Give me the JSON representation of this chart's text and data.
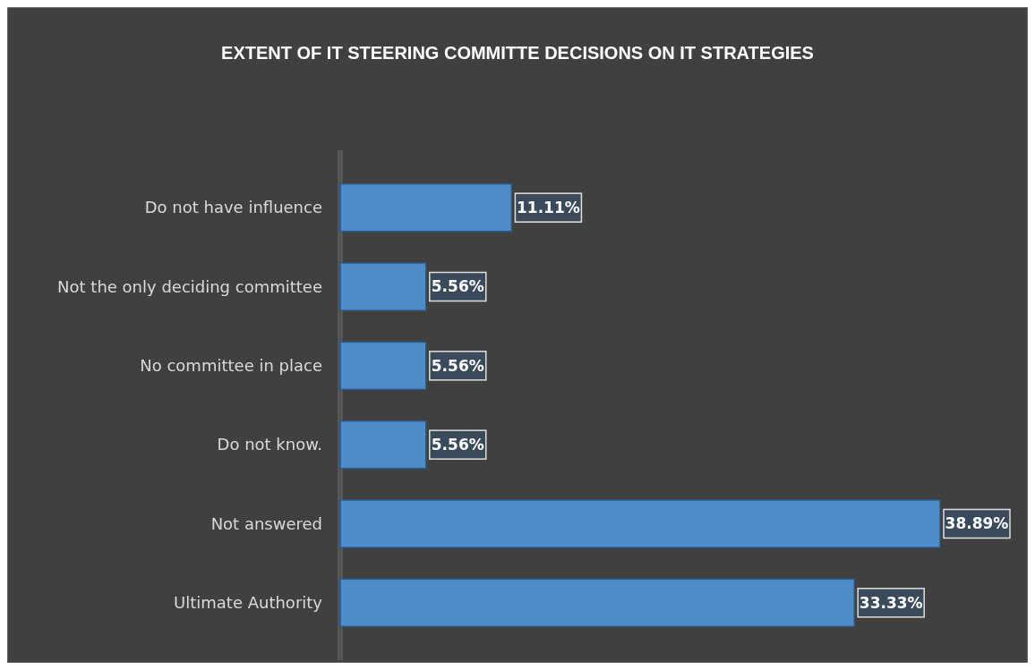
{
  "chart_data": {
    "type": "bar",
    "orientation": "horizontal",
    "title": "EXTENT OF IT STEERING COMMITTE DECISIONS ON IT STRATEGIES",
    "categories": [
      "Do not have influence",
      "Not the only deciding committee",
      "No committee in place",
      "Do not know.",
      "Not answered",
      "Ultimate Authority"
    ],
    "values": [
      11.11,
      5.56,
      5.56,
      5.56,
      38.89,
      33.33
    ],
    "value_labels": [
      "11.11%",
      "5.56%",
      "5.56%",
      "5.56%",
      "38.89%",
      "33.33%"
    ],
    "color": "#4f8cc9"
  }
}
